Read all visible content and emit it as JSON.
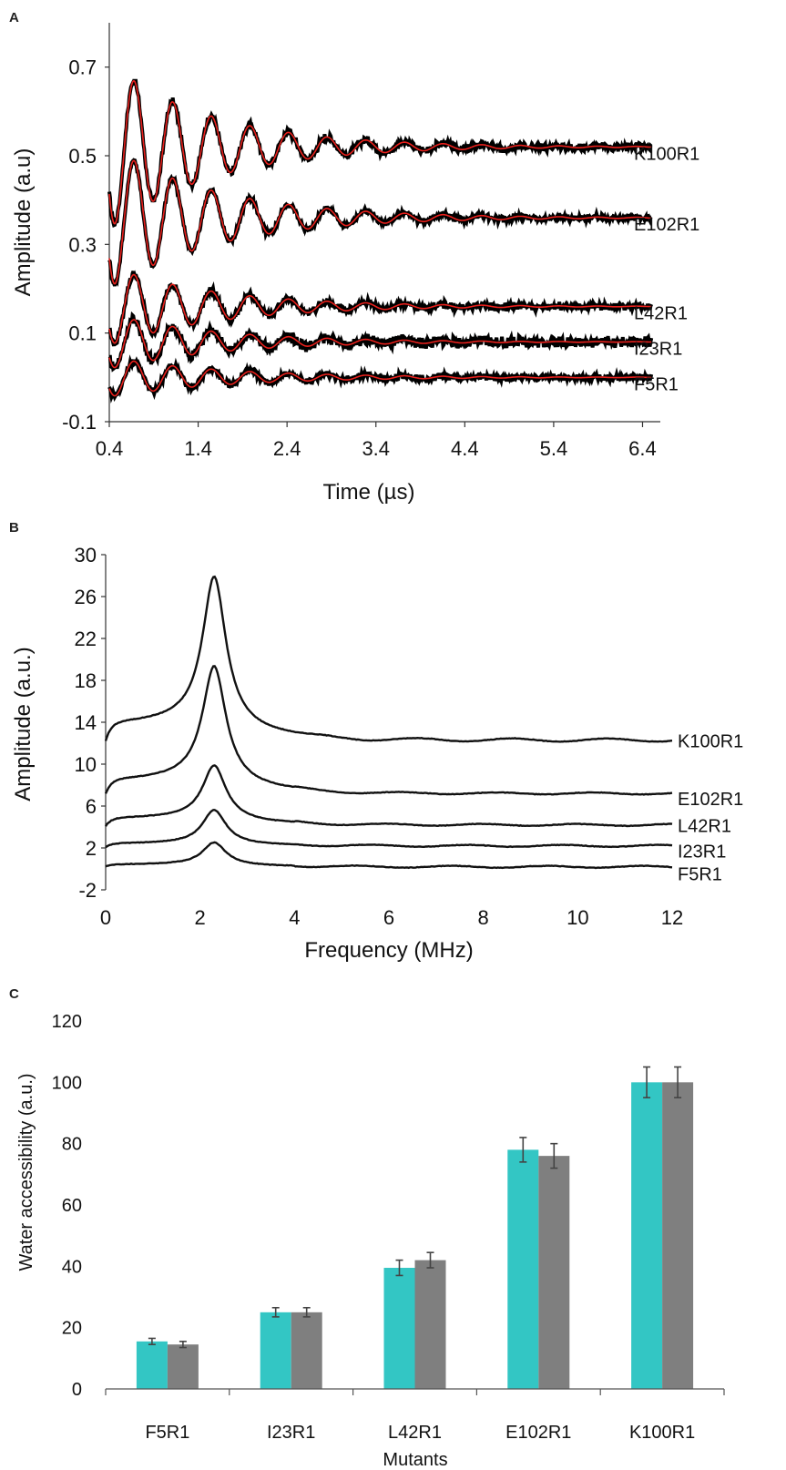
{
  "chart_data": [
    {
      "panel": "A",
      "type": "line",
      "xlabel": "Time (µs)",
      "ylabel": "Amplitude (a.u)",
      "xlim": [
        0.4,
        6.6
      ],
      "ylim": [
        -0.1,
        0.8
      ],
      "xticks": [
        "0.4",
        "1.4",
        "2.4",
        "3.4",
        "4.4",
        "5.4",
        "6.4"
      ],
      "yticks": [
        "-0.1",
        "0.1",
        "0.3",
        "0.5",
        "0.7"
      ],
      "data_color": "#000000",
      "fit_color": "#e8201c",
      "series": [
        {
          "name": "K100R1",
          "x_start": 0.4,
          "x_end": 6.5,
          "offset": 0.52,
          "amplitude": 0.21,
          "freq_MHz": 2.3,
          "decay_us": 1.15,
          "noise": 0.006,
          "x": [
            0.4,
            0.68,
            1.12,
            1.55,
            2.0,
            2.45,
            2.9,
            3.35,
            3.8,
            4.5,
            5.5,
            6.5
          ],
          "y": [
            0.61,
            0.74,
            0.67,
            0.63,
            0.59,
            0.56,
            0.55,
            0.54,
            0.53,
            0.525,
            0.52,
            0.52
          ]
        },
        {
          "name": "E102R1",
          "x_start": 0.4,
          "x_end": 6.5,
          "offset": 0.36,
          "amplitude": 0.18,
          "freq_MHz": 2.3,
          "decay_us": 1.2,
          "noise": 0.005,
          "x": [
            0.4,
            0.68,
            1.12,
            1.55,
            2.0,
            2.45,
            2.9,
            3.35,
            3.8,
            4.5,
            5.5,
            6.5
          ],
          "y": [
            0.48,
            0.52,
            0.46,
            0.44,
            0.41,
            0.4,
            0.39,
            0.38,
            0.37,
            0.365,
            0.36,
            0.36
          ]
        },
        {
          "name": "L42R1",
          "x_start": 0.4,
          "x_end": 6.5,
          "offset": 0.16,
          "amplitude": 0.1,
          "freq_MHz": 2.3,
          "decay_us": 1.2,
          "noise": 0.006,
          "x": [
            0.4,
            0.68,
            1.12,
            1.55,
            2.0,
            2.45,
            2.9,
            3.35,
            3.8,
            4.5,
            5.5,
            6.5
          ],
          "y": [
            0.21,
            0.24,
            0.22,
            0.21,
            0.2,
            0.19,
            0.18,
            0.17,
            0.165,
            0.16,
            0.16,
            0.16
          ]
        },
        {
          "name": "I23R1",
          "x_start": 0.4,
          "x_end": 6.5,
          "offset": 0.08,
          "amplitude": 0.07,
          "freq_MHz": 2.3,
          "decay_us": 1.2,
          "noise": 0.008,
          "x": [
            0.4,
            0.68,
            1.12,
            1.55,
            2.0,
            2.45,
            2.9,
            3.35,
            3.8,
            4.5,
            5.5,
            6.5
          ],
          "y": [
            0.12,
            0.14,
            0.13,
            0.12,
            0.11,
            0.1,
            0.095,
            0.09,
            0.085,
            0.08,
            0.08,
            0.08
          ]
        },
        {
          "name": "F5R1",
          "x_start": 0.4,
          "x_end": 6.5,
          "offset": 0.0,
          "amplitude": 0.05,
          "freq_MHz": 2.3,
          "decay_us": 1.3,
          "noise": 0.005,
          "x": [
            0.4,
            0.68,
            1.12,
            1.55,
            2.0,
            2.45,
            2.9,
            3.35,
            3.8,
            4.5,
            5.5,
            6.5
          ],
          "y": [
            0.04,
            0.05,
            0.04,
            0.035,
            0.03,
            0.025,
            0.02,
            0.015,
            0.01,
            0.005,
            0.0,
            0.0
          ]
        }
      ]
    },
    {
      "panel": "B",
      "type": "line",
      "xlabel": "Frequency (MHz)",
      "ylabel": "Amplitude (a.u.)",
      "xlim": [
        0,
        12
      ],
      "ylim": [
        -2,
        30
      ],
      "xticks": [
        "0",
        "2",
        "4",
        "6",
        "8",
        "10",
        "12"
      ],
      "yticks": [
        "-2",
        "2",
        "6",
        "10",
        "14",
        "18",
        "22",
        "26",
        "30"
      ],
      "series": [
        {
          "name": "K100R1",
          "base": 12.3,
          "start": 12.0,
          "shoulder": 13.8,
          "peak": 27.7,
          "x": [
            0,
            0.3,
            1.0,
            1.8,
            2.3,
            2.8,
            3.5,
            4.5,
            6,
            8,
            10,
            12
          ],
          "y": [
            12.0,
            13.8,
            14.1,
            15.8,
            27.7,
            16.0,
            13.3,
            12.5,
            12.5,
            12.3,
            12.3,
            12.3
          ]
        },
        {
          "name": "E102R1",
          "base": 7.2,
          "start": 7.0,
          "shoulder": 8.4,
          "peak": 19.2,
          "x": [
            0,
            0.3,
            1.0,
            1.8,
            2.3,
            2.8,
            3.5,
            4.5,
            6,
            8,
            10,
            12
          ],
          "y": [
            7.0,
            8.4,
            8.6,
            9.8,
            19.2,
            10.5,
            8.3,
            7.4,
            7.3,
            7.3,
            7.2,
            7.2
          ]
        },
        {
          "name": "L42R1",
          "base": 4.2,
          "start": 4.0,
          "shoulder": 4.8,
          "peak": 9.8,
          "x": [
            0,
            0.3,
            1.0,
            1.8,
            2.3,
            2.8,
            3.5,
            4.5,
            6,
            8,
            10,
            12
          ],
          "y": [
            4.0,
            4.8,
            5.0,
            5.8,
            9.8,
            6.0,
            4.8,
            4.3,
            4.3,
            4.2,
            4.2,
            4.2
          ]
        },
        {
          "name": "I23R1",
          "base": 2.2,
          "start": 2.0,
          "shoulder": 2.4,
          "peak": 5.6,
          "x": [
            0,
            0.3,
            1.0,
            1.8,
            2.3,
            2.8,
            3.5,
            4.5,
            6,
            8,
            10,
            12
          ],
          "y": [
            2.0,
            2.4,
            2.6,
            3.2,
            5.6,
            3.2,
            2.4,
            2.3,
            2.3,
            2.2,
            2.2,
            2.2
          ]
        },
        {
          "name": "F5R1",
          "base": 0.2,
          "start": 0.2,
          "shoulder": 0.4,
          "peak": 2.5,
          "x": [
            0,
            0.3,
            1.0,
            1.8,
            2.3,
            2.8,
            3.5,
            4.5,
            6,
            8,
            10,
            12
          ],
          "y": [
            0.2,
            0.4,
            0.5,
            0.9,
            2.5,
            0.9,
            0.4,
            0.3,
            0.3,
            0.2,
            0.2,
            0.2
          ]
        }
      ]
    },
    {
      "panel": "C",
      "type": "bar",
      "xlabel": "Mutants",
      "ylabel": "Water accessibility (a.u.)",
      "ylim": [
        0,
        120
      ],
      "yticks": [
        "0",
        "20",
        "40",
        "60",
        "80",
        "100",
        "120"
      ],
      "categories": [
        "F5R1",
        "I23R1",
        "L42R1",
        "E102R1",
        "K100R1"
      ],
      "series": [
        {
          "color": "#33c6c4",
          "values": [
            15.5,
            25,
            39.5,
            78,
            100
          ],
          "errors": [
            1,
            1.5,
            2.5,
            4,
            5
          ]
        },
        {
          "color": "#7f7f7f",
          "values": [
            14.5,
            25,
            42,
            76,
            100
          ],
          "errors": [
            1,
            1.5,
            2.5,
            4,
            5
          ]
        }
      ]
    }
  ]
}
